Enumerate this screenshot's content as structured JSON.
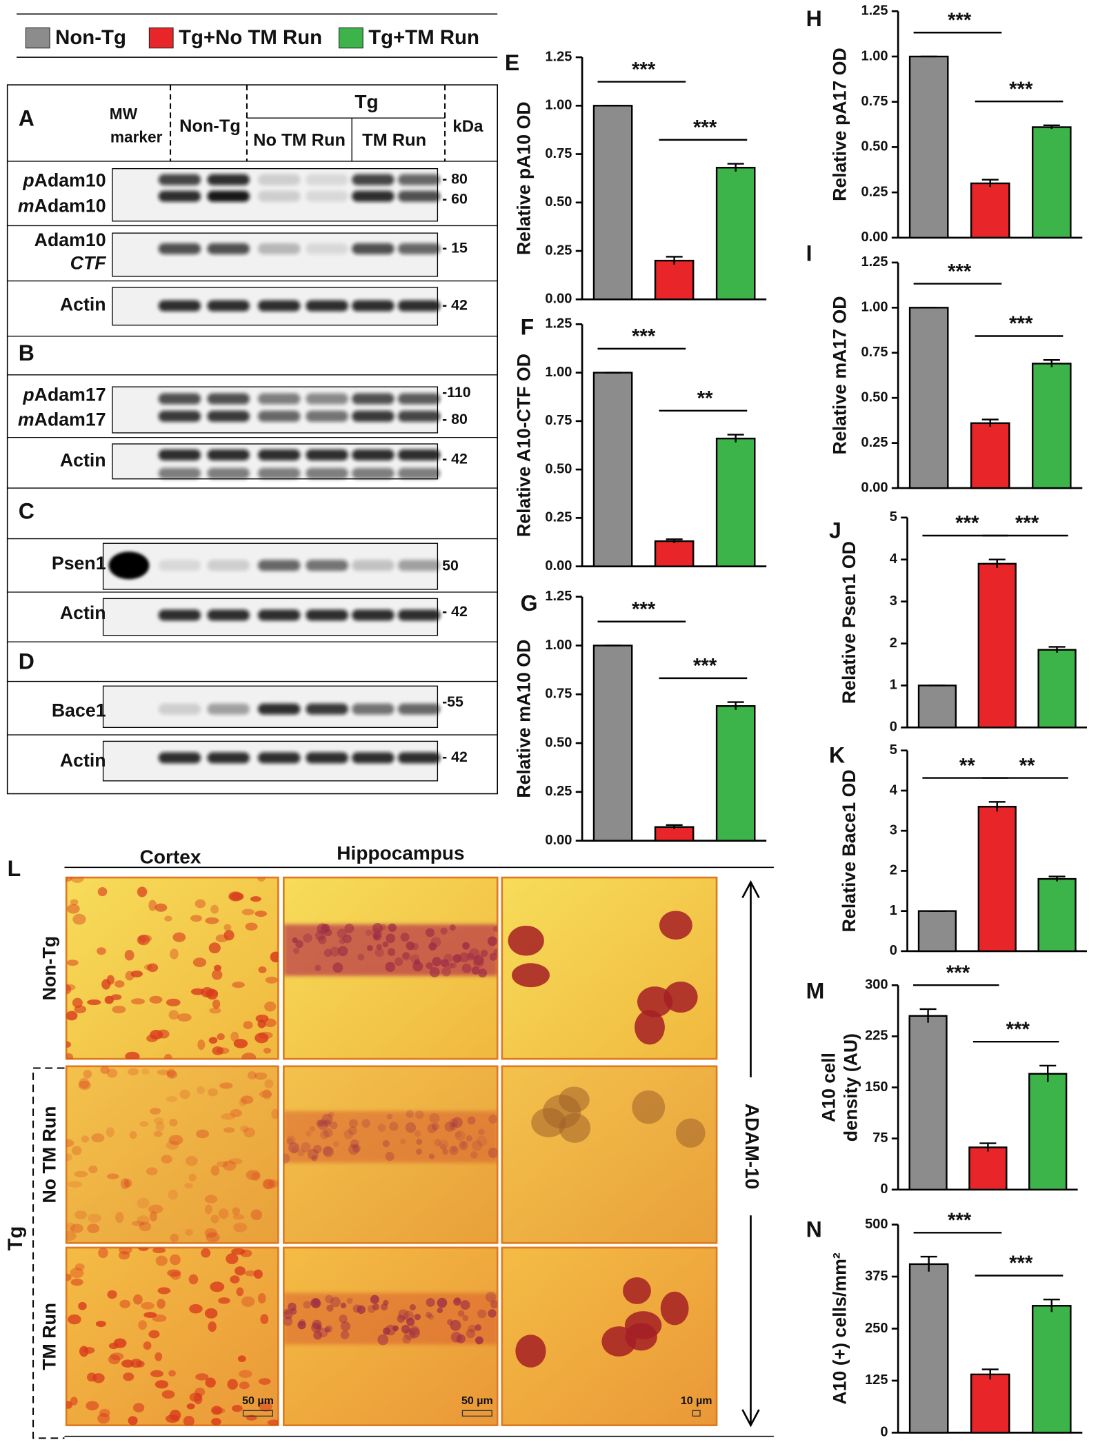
{
  "legend": [
    {
      "name": "Non-Tg",
      "color": "#8c8c8c"
    },
    {
      "name": "Tg+No TM Run",
      "color": "#e8262a"
    },
    {
      "name": "Tg+TM Run",
      "color": "#3cb44a"
    }
  ],
  "blots": {
    "letters": [
      "A",
      "B",
      "C",
      "D"
    ],
    "header": {
      "mw": [
        "MW",
        "marker"
      ],
      "non_tg": "Non-Tg",
      "tg": "Tg",
      "no_tm_run": "No TM Run",
      "tm_run": "TM Run",
      "kda": "kDa"
    },
    "rows": [
      {
        "labels": [
          [
            "p",
            "Adam10"
          ],
          [
            "m",
            "Adam10"
          ]
        ],
        "markers": [
          "- 80",
          "- 60"
        ]
      },
      {
        "labels": [
          [
            "Adam10"
          ],
          [
            "CTF"
          ]
        ],
        "markers": [
          "- 15"
        ]
      },
      {
        "labels": [
          [
            "Actin"
          ]
        ],
        "markers": [
          "- 42"
        ]
      },
      {
        "labels": [
          [
            "p",
            "Adam17"
          ],
          [
            "m",
            "Adam17"
          ]
        ],
        "markers": [
          "-110",
          "- 80"
        ]
      },
      {
        "labels": [
          [
            "Actin"
          ]
        ],
        "markers": [
          "- 42"
        ]
      },
      {
        "labels": [
          [
            "Psen1"
          ]
        ],
        "markers": [
          "50"
        ]
      },
      {
        "labels": [
          [
            "Actin"
          ]
        ],
        "markers": [
          "- 42"
        ]
      },
      {
        "labels": [
          [
            "Bace1"
          ]
        ],
        "markers": [
          "-55"
        ]
      },
      {
        "labels": [
          [
            "Actin"
          ]
        ],
        "markers": [
          "- 42"
        ]
      }
    ]
  },
  "micrographs": {
    "letter": "L",
    "columns": [
      "Cortex",
      "Hippocampus"
    ],
    "rows": [
      "Non-Tg",
      "No TM Run",
      "TM Run"
    ],
    "group": "Tg",
    "stain": "ADAM-10",
    "scale_bars": [
      "50 µm",
      "50 µm",
      "10 µm"
    ]
  },
  "chart_data": [
    {
      "type": "bar",
      "letter": "E",
      "ylabel": "Relative pA10 OD",
      "categories": [
        null,
        null,
        null
      ],
      "values": [
        1.0,
        0.2,
        0.68
      ],
      "errors": [
        0.0,
        0.02,
        0.02
      ],
      "ylim": [
        0,
        1.25
      ],
      "yticks": [
        {
          "value": 0,
          "label": "0.00"
        },
        0.25,
        {
          "value": 0.5,
          "label": "0.50"
        },
        0.75,
        {
          "value": 1,
          "label": "1.00"
        },
        1.25
      ],
      "annotations": [
        "***",
        "***"
      ]
    },
    {
      "type": "bar",
      "letter": "F",
      "ylabel": "Relative A10-CTF OD",
      "categories": [
        null,
        null,
        null
      ],
      "values": [
        1.0,
        0.13,
        0.66
      ],
      "errors": [
        0.0,
        0.01,
        0.02
      ],
      "ylim": [
        0,
        1.25
      ],
      "yticks": [
        {
          "value": 0,
          "label": "0.00"
        },
        0.25,
        {
          "value": 0.5,
          "label": "0.50"
        },
        0.75,
        {
          "value": 1,
          "label": "1.00"
        },
        1.25
      ],
      "annotations": [
        "***",
        "**"
      ]
    },
    {
      "type": "bar",
      "letter": "G",
      "ylabel": "Relative mA10 OD",
      "categories": [
        null,
        null,
        null
      ],
      "values": [
        1.0,
        0.07,
        0.69
      ],
      "errors": [
        0.0,
        0.01,
        0.02
      ],
      "ylim": [
        0,
        1.25
      ],
      "yticks": [
        {
          "value": 0,
          "label": "0.00"
        },
        0.25,
        {
          "value": 0.5,
          "label": "0.50"
        },
        0.75,
        {
          "value": 1,
          "label": "1.00"
        },
        1.25
      ],
      "annotations": [
        "***",
        "***"
      ]
    },
    {
      "type": "bar",
      "letter": "H",
      "ylabel": "Relative pA17 OD",
      "categories": [
        null,
        null,
        null
      ],
      "values": [
        1.0,
        0.3,
        0.61
      ],
      "errors": [
        0.0,
        0.02,
        0.01
      ],
      "ylim": [
        0,
        1.25
      ],
      "yticks": [
        {
          "value": 0,
          "label": "0.00"
        },
        0.25,
        {
          "value": 0.5,
          "label": "0.50"
        },
        0.75,
        {
          "value": 1,
          "label": "1.00"
        },
        1.25
      ],
      "annotations": [
        "***",
        "***"
      ]
    },
    {
      "type": "bar",
      "letter": "I",
      "ylabel": "Relative mA17 OD",
      "categories": [
        null,
        null,
        null
      ],
      "values": [
        1.0,
        0.36,
        0.69
      ],
      "errors": [
        0.0,
        0.02,
        0.02
      ],
      "ylim": [
        0,
        1.25
      ],
      "yticks": [
        {
          "value": 0,
          "label": "0.00"
        },
        0.25,
        {
          "value": 0.5,
          "label": "0.50"
        },
        0.75,
        {
          "value": 1,
          "label": "1.00"
        },
        1.25
      ],
      "annotations": [
        "***",
        "***"
      ]
    },
    {
      "type": "bar",
      "letter": "J",
      "ylabel": "Relative Psen1 OD",
      "categories": [
        null,
        null,
        null
      ],
      "values": [
        1.0,
        3.9,
        1.85
      ],
      "errors": [
        0.0,
        0.1,
        0.07
      ],
      "ylim": [
        0,
        5
      ],
      "yticks": [
        0,
        1,
        2,
        3,
        4,
        5
      ],
      "annotations": [
        "***",
        "***"
      ]
    },
    {
      "type": "bar",
      "letter": "K",
      "ylabel": "Relative Bace1 OD",
      "categories": [
        null,
        null,
        null
      ],
      "values": [
        1.0,
        3.6,
        1.8
      ],
      "errors": [
        0.0,
        0.12,
        0.06
      ],
      "ylim": [
        0,
        5
      ],
      "yticks": [
        0,
        1,
        2,
        3,
        4,
        5
      ],
      "annotations": [
        "**",
        "**"
      ]
    },
    {
      "type": "bar",
      "letter": "M",
      "ylabel": [
        "A10 cell",
        "density (AU)"
      ],
      "categories": [
        null,
        null,
        null
      ],
      "values": [
        255,
        62,
        170
      ],
      "errors": [
        10,
        6,
        12
      ],
      "ylim": [
        0,
        300
      ],
      "yticks": [
        0,
        75,
        150,
        225,
        300
      ],
      "annotations": [
        "***",
        "***"
      ]
    },
    {
      "type": "bar",
      "letter": "N",
      "ylabel": "A10 (+) cells/mm²",
      "categories": [
        null,
        null,
        null
      ],
      "values": [
        405,
        140,
        305
      ],
      "errors": [
        18,
        12,
        15
      ],
      "ylim": [
        0,
        500
      ],
      "yticks": [
        0,
        125,
        250,
        375,
        500
      ],
      "annotations": [
        "***",
        "***"
      ]
    }
  ]
}
